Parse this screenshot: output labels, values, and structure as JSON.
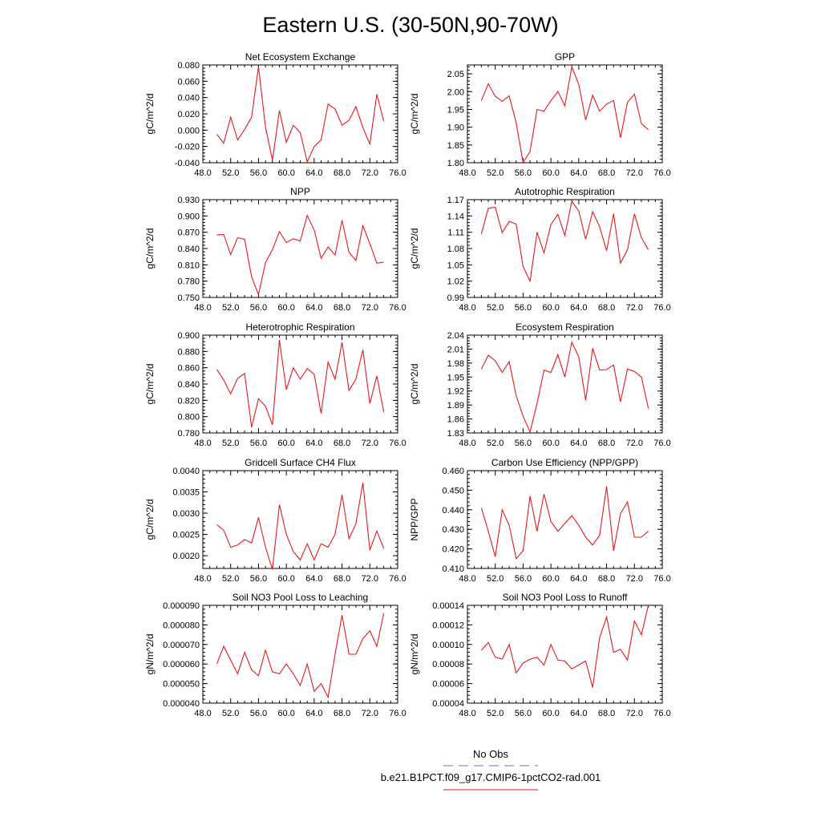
{
  "page_title": "Eastern U.S. (30-50N,90-70W)",
  "line_color": "#e8191c",
  "obs_color": "#7070d0",
  "legend": {
    "obs_label": "No Obs",
    "model_label": "b.e21.B1PCT.f09_g17.CMIP6-1pctCO2-rad.001"
  },
  "chart_data": [
    {
      "type": "line",
      "title": "Net Ecosystem Exchange",
      "ylabel": "gC/m^2/d",
      "xlim": [
        48,
        76
      ],
      "ylim": [
        -0.04,
        0.08
      ],
      "xticks": [
        48,
        52,
        56,
        60,
        64,
        68,
        72,
        76
      ],
      "xtick_labels": [
        "48.0",
        "52.0",
        "56.0",
        "60.0",
        "64.0",
        "68.0",
        "72.0",
        "76.0"
      ],
      "yticks": [
        -0.04,
        -0.02,
        0,
        0.02,
        0.04,
        0.06,
        0.08
      ],
      "ytick_labels": [
        "-0.040",
        "-0.020",
        "0.000",
        "0.020",
        "0.040",
        "0.060",
        "0.080"
      ],
      "x": [
        50,
        51,
        52,
        53,
        54,
        55,
        56,
        57,
        58,
        59,
        60,
        61,
        62,
        63,
        64,
        65,
        66,
        67,
        68,
        69,
        70,
        71,
        72,
        73,
        74
      ],
      "y": [
        -0.005,
        -0.016,
        0.016,
        -0.012,
        0.001,
        0.016,
        0.078,
        0.004,
        -0.037,
        0.024,
        -0.015,
        0.006,
        -0.003,
        -0.039,
        -0.02,
        -0.012,
        0.032,
        0.026,
        0.006,
        0.012,
        0.029,
        0.003,
        -0.017,
        0.044,
        0.011
      ]
    },
    {
      "type": "line",
      "title": "GPP",
      "ylabel": "gC/m^2/d",
      "xlim": [
        48,
        76
      ],
      "ylim": [
        1.8,
        2.075
      ],
      "xticks": [
        48,
        52,
        56,
        60,
        64,
        68,
        72,
        76
      ],
      "xtick_labels": [
        "48.0",
        "52.0",
        "56.0",
        "60.0",
        "64.0",
        "68.0",
        "72.0",
        "76.0"
      ],
      "yticks": [
        1.8,
        1.85,
        1.9,
        1.95,
        2.0,
        2.05
      ],
      "ytick_labels": [
        "1.80",
        "1.85",
        "1.90",
        "1.95",
        "2.00",
        "2.05"
      ],
      "x": [
        50,
        51,
        52,
        53,
        54,
        55,
        56,
        57,
        58,
        59,
        60,
        61,
        62,
        63,
        64,
        65,
        66,
        67,
        68,
        69,
        70,
        71,
        72,
        73,
        74
      ],
      "y": [
        1.975,
        2.022,
        1.987,
        1.973,
        1.988,
        1.912,
        1.8,
        1.832,
        1.95,
        1.945,
        1.975,
        2.0,
        1.96,
        2.07,
        2.02,
        1.92,
        1.99,
        1.945,
        1.965,
        1.975,
        1.87,
        1.97,
        1.993,
        1.91,
        1.893
      ]
    },
    {
      "type": "line",
      "title": "NPP",
      "ylabel": "gC/m^2/d",
      "xlim": [
        48,
        76
      ],
      "ylim": [
        0.75,
        0.93
      ],
      "xticks": [
        48,
        52,
        56,
        60,
        64,
        68,
        72,
        76
      ],
      "xtick_labels": [
        "48.0",
        "52.0",
        "56.0",
        "60.0",
        "64.0",
        "68.0",
        "72.0",
        "76.0"
      ],
      "yticks": [
        0.75,
        0.78,
        0.81,
        0.84,
        0.87,
        0.9,
        0.93
      ],
      "ytick_labels": [
        "0.750",
        "0.780",
        "0.810",
        "0.840",
        "0.870",
        "0.900",
        "0.930"
      ],
      "x": [
        50,
        51,
        52,
        53,
        54,
        55,
        56,
        57,
        58,
        59,
        60,
        61,
        62,
        63,
        64,
        65,
        66,
        67,
        68,
        69,
        70,
        71,
        72,
        73,
        74
      ],
      "y": [
        0.865,
        0.866,
        0.829,
        0.86,
        0.857,
        0.788,
        0.755,
        0.814,
        0.838,
        0.871,
        0.851,
        0.858,
        0.854,
        0.901,
        0.874,
        0.822,
        0.843,
        0.828,
        0.892,
        0.833,
        0.818,
        0.882,
        0.849,
        0.813,
        0.815
      ]
    },
    {
      "type": "line",
      "title": "Autotrophic Respiration",
      "ylabel": "gC/m^2/d",
      "xlim": [
        48,
        76
      ],
      "ylim": [
        0.99,
        1.17
      ],
      "xticks": [
        48,
        52,
        56,
        60,
        64,
        68,
        72,
        76
      ],
      "xtick_labels": [
        "48.0",
        "52.0",
        "56.0",
        "60.0",
        "64.0",
        "68.0",
        "72.0",
        "76.0"
      ],
      "yticks": [
        0.99,
        1.02,
        1.05,
        1.08,
        1.11,
        1.14,
        1.17
      ],
      "ytick_labels": [
        "0.99",
        "1.02",
        "1.05",
        "1.08",
        "1.11",
        "1.14",
        "1.17"
      ],
      "x": [
        50,
        51,
        52,
        53,
        54,
        55,
        56,
        57,
        58,
        59,
        60,
        61,
        62,
        63,
        64,
        65,
        66,
        67,
        68,
        69,
        70,
        71,
        72,
        73,
        74
      ],
      "y": [
        1.107,
        1.154,
        1.156,
        1.109,
        1.13,
        1.125,
        1.047,
        1.02,
        1.11,
        1.072,
        1.124,
        1.143,
        1.104,
        1.167,
        1.149,
        1.097,
        1.148,
        1.12,
        1.076,
        1.144,
        1.053,
        1.078,
        1.144,
        1.1,
        1.078
      ]
    },
    {
      "type": "line",
      "title": "Heterotrophic Respiration",
      "ylabel": "gC/m^2/d",
      "xlim": [
        48,
        76
      ],
      "ylim": [
        0.78,
        0.9
      ],
      "xticks": [
        48,
        52,
        56,
        60,
        64,
        68,
        72,
        76
      ],
      "xtick_labels": [
        "48.0",
        "52.0",
        "56.0",
        "60.0",
        "64.0",
        "68.0",
        "72.0",
        "76.0"
      ],
      "yticks": [
        0.78,
        0.8,
        0.82,
        0.84,
        0.86,
        0.88,
        0.9
      ],
      "ytick_labels": [
        "0.780",
        "0.800",
        "0.820",
        "0.840",
        "0.860",
        "0.880",
        "0.900"
      ],
      "x": [
        50,
        51,
        52,
        53,
        54,
        55,
        56,
        57,
        58,
        59,
        60,
        61,
        62,
        63,
        64,
        65,
        66,
        67,
        68,
        69,
        70,
        71,
        72,
        73,
        74
      ],
      "y": [
        0.858,
        0.845,
        0.828,
        0.847,
        0.853,
        0.787,
        0.822,
        0.813,
        0.79,
        0.894,
        0.833,
        0.86,
        0.846,
        0.859,
        0.852,
        0.804,
        0.867,
        0.846,
        0.891,
        0.832,
        0.846,
        0.882,
        0.816,
        0.85,
        0.806
      ]
    },
    {
      "type": "line",
      "title": "Ecosystem Respiration",
      "ylabel": "gC/m^2/d",
      "xlim": [
        48,
        76
      ],
      "ylim": [
        1.83,
        2.04
      ],
      "xticks": [
        48,
        52,
        56,
        60,
        64,
        68,
        72,
        76
      ],
      "xtick_labels": [
        "48.0",
        "52.0",
        "56.0",
        "60.0",
        "64.0",
        "68.0",
        "72.0",
        "76.0"
      ],
      "yticks": [
        1.83,
        1.86,
        1.89,
        1.92,
        1.95,
        1.98,
        2.01,
        2.04
      ],
      "ytick_labels": [
        "1.83",
        "1.86",
        "1.89",
        "1.92",
        "1.95",
        "1.98",
        "2.01",
        "2.04"
      ],
      "x": [
        50,
        51,
        52,
        53,
        54,
        55,
        56,
        57,
        58,
        59,
        60,
        61,
        62,
        63,
        64,
        65,
        66,
        67,
        68,
        69,
        70,
        71,
        72,
        73,
        74
      ],
      "y": [
        1.967,
        1.997,
        1.985,
        1.96,
        1.983,
        1.91,
        1.866,
        1.832,
        1.893,
        1.965,
        1.96,
        1.998,
        1.95,
        2.025,
        1.993,
        1.9,
        2.012,
        1.965,
        1.966,
        1.976,
        1.897,
        1.967,
        1.962,
        1.95,
        1.883
      ]
    },
    {
      "type": "line",
      "title": "Gridcell Surface CH4 Flux",
      "ylabel": "gC/m^2/d",
      "xlim": [
        48,
        76
      ],
      "ylim": [
        0.0017,
        0.004
      ],
      "xticks": [
        48,
        52,
        56,
        60,
        64,
        68,
        72,
        76
      ],
      "xtick_labels": [
        "48.0",
        "52.0",
        "56.0",
        "60.0",
        "64.0",
        "68.0",
        "72.0",
        "76.0"
      ],
      "yticks": [
        0.002,
        0.0025,
        0.003,
        0.0035,
        0.004
      ],
      "ytick_labels": [
        "0.0020",
        "0.0025",
        "0.0030",
        "0.0035",
        "0.0040"
      ],
      "x": [
        50,
        51,
        52,
        53,
        54,
        55,
        56,
        57,
        58,
        59,
        60,
        61,
        62,
        63,
        64,
        65,
        66,
        67,
        68,
        69,
        70,
        71,
        72,
        73,
        74
      ],
      "y": [
        0.00273,
        0.0026,
        0.0022,
        0.00225,
        0.00238,
        0.0023,
        0.0029,
        0.0022,
        0.00168,
        0.0032,
        0.0025,
        0.0021,
        0.0019,
        0.00228,
        0.0019,
        0.00228,
        0.0022,
        0.0025,
        0.00343,
        0.0024,
        0.00275,
        0.00372,
        0.00213,
        0.00258,
        0.00217
      ]
    },
    {
      "type": "line",
      "title": "Carbon Use Efficiency (NPP/GPP)",
      "ylabel": "NPP/GPP",
      "xlim": [
        48,
        76
      ],
      "ylim": [
        0.41,
        0.46
      ],
      "xticks": [
        48,
        52,
        56,
        60,
        64,
        68,
        72,
        76
      ],
      "xtick_labels": [
        "48.0",
        "52.0",
        "56.0",
        "60.0",
        "64.0",
        "68.0",
        "72.0",
        "76.0"
      ],
      "yticks": [
        0.41,
        0.42,
        0.43,
        0.44,
        0.45,
        0.46
      ],
      "ytick_labels": [
        "0.410",
        "0.420",
        "0.430",
        "0.440",
        "0.450",
        "0.460"
      ],
      "x": [
        50,
        51,
        52,
        53,
        54,
        55,
        56,
        57,
        58,
        59,
        60,
        61,
        62,
        63,
        64,
        65,
        66,
        67,
        68,
        69,
        70,
        71,
        72,
        73,
        74
      ],
      "y": [
        0.441,
        0.429,
        0.416,
        0.44,
        0.432,
        0.415,
        0.419,
        0.447,
        0.429,
        0.448,
        0.434,
        0.429,
        0.433,
        0.437,
        0.432,
        0.426,
        0.422,
        0.427,
        0.452,
        0.419,
        0.438,
        0.444,
        0.426,
        0.426,
        0.429
      ]
    },
    {
      "type": "line",
      "title": "Soil NO3 Pool Loss to Leaching",
      "ylabel": "gN/m^2/d",
      "xlim": [
        48,
        76
      ],
      "ylim": [
        4e-05,
        9e-05
      ],
      "xticks": [
        48,
        52,
        56,
        60,
        64,
        68,
        72,
        76
      ],
      "xtick_labels": [
        "48.0",
        "52.0",
        "56.0",
        "60.0",
        "64.0",
        "68.0",
        "72.0",
        "76.0"
      ],
      "yticks": [
        4e-05,
        5e-05,
        6e-05,
        7e-05,
        8e-05,
        9e-05
      ],
      "ytick_labels": [
        "0.000040",
        "0.000050",
        "0.000060",
        "0.000070",
        "0.000080",
        "0.000090"
      ],
      "x": [
        50,
        51,
        52,
        53,
        54,
        55,
        56,
        57,
        58,
        59,
        60,
        61,
        62,
        63,
        64,
        65,
        66,
        67,
        68,
        69,
        70,
        71,
        72,
        73,
        74
      ],
      "y": [
        6e-05,
        6.9e-05,
        6.2e-05,
        5.5e-05,
        6.6e-05,
        5.7e-05,
        5.4e-05,
        6.7e-05,
        5.6e-05,
        5.5e-05,
        6e-05,
        5.5e-05,
        4.9e-05,
        6e-05,
        4.6e-05,
        5e-05,
        4.3e-05,
        6.5e-05,
        8.5e-05,
        6.5e-05,
        6.5e-05,
        7.3e-05,
        7.7e-05,
        6.9e-05,
        8.6e-05
      ]
    },
    {
      "type": "line",
      "title": "Soil NO3 Pool Loss to Runoff",
      "ylabel": "gN/m^2/d",
      "xlim": [
        48,
        76
      ],
      "ylim": [
        4e-05,
        0.00014
      ],
      "xticks": [
        48,
        52,
        56,
        60,
        64,
        68,
        72,
        76
      ],
      "xtick_labels": [
        "48.0",
        "52.0",
        "56.0",
        "60.0",
        "64.0",
        "68.0",
        "72.0",
        "76.0"
      ],
      "yticks": [
        4e-05,
        6e-05,
        8e-05,
        0.0001,
        0.00012,
        0.00014
      ],
      "ytick_labels": [
        "0.00004",
        "0.00006",
        "0.00008",
        "0.00010",
        "0.00012",
        "0.00014"
      ],
      "x": [
        50,
        51,
        52,
        53,
        54,
        55,
        56,
        57,
        58,
        59,
        60,
        61,
        62,
        63,
        64,
        65,
        66,
        67,
        68,
        69,
        70,
        71,
        72,
        73,
        74
      ],
      "y": [
        9.4e-05,
        0.000102,
        8.7e-05,
        8.5e-05,
        0.0001,
        7.1e-05,
        8.1e-05,
        8.5e-05,
        8.7e-05,
        7.9e-05,
        0.0001,
        8.4e-05,
        8.3e-05,
        7.5e-05,
        7.9e-05,
        8.3e-05,
        5.6e-05,
        0.000107,
        0.000128,
        9.2e-05,
        9.5e-05,
        8.4e-05,
        0.000124,
        0.00011,
        0.00014
      ]
    }
  ]
}
